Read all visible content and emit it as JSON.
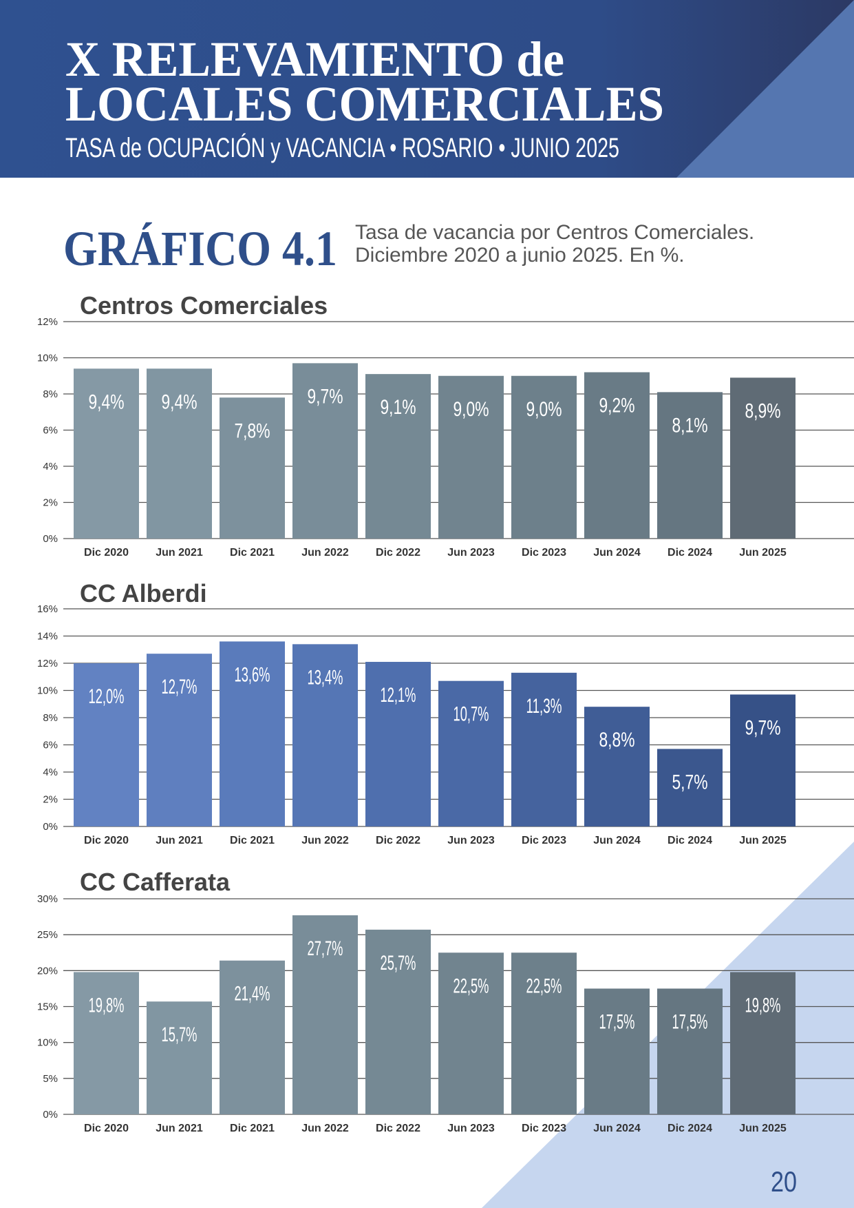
{
  "header": {
    "title_line1": "X RELEVAMIENTO de",
    "title_line2": "LOCALES COMERCIALES",
    "subtitle": "TASA de OCUPACIÓN y VACANCIA  •  ROSARIO  •  JUNIO 2025"
  },
  "figure": {
    "label": "GRÁFICO 4.1",
    "description_line1": "Tasa de vacancia por Centros Comerciales.",
    "description_line2": "Diciembre 2020 a junio 2025. En %."
  },
  "chart_data": [
    {
      "type": "bar",
      "title": "Centros Comerciales",
      "categories": [
        "Dic 2020",
        "Jun 2021",
        "Dic 2021",
        "Jun 2022",
        "Dic 2022",
        "Jun 2023",
        "Dic 2023",
        "Jun 2024",
        "Dic 2024",
        "Jun 2025"
      ],
      "values": [
        9.4,
        9.4,
        7.8,
        9.7,
        9.1,
        9.0,
        9.0,
        9.2,
        8.1,
        8.9
      ],
      "value_labels": [
        "9,4%",
        "9,4%",
        "7,8%",
        "9,7%",
        "9,1%",
        "9,0%",
        "9,0%",
        "9,2%",
        "8,1%",
        "8,9%"
      ],
      "colors": [
        "#8599a5",
        "#8196a2",
        "#7d919d",
        "#798d99",
        "#758994",
        "#71848f",
        "#6d808b",
        "#697b86",
        "#657681",
        "#5f6b75"
      ],
      "ylim": [
        0,
        12
      ],
      "yticks": [
        {
          "value": 0,
          "label": "0%"
        },
        {
          "value": 2,
          "label": "2%"
        },
        {
          "value": 4,
          "label": "4%"
        },
        {
          "value": 6,
          "label": "6%"
        },
        {
          "value": 8,
          "label": "8%"
        },
        {
          "value": 10,
          "label": "10%"
        },
        {
          "value": 12,
          "label": "12%"
        }
      ],
      "grid": true
    },
    {
      "type": "bar",
      "title": "CC Alberdi",
      "categories": [
        "Dic 2020",
        "Jun 2021",
        "Dic 2021",
        "Jun 2022",
        "Dic 2022",
        "Jun 2023",
        "Dic 2023",
        "Jun 2024",
        "Dic 2024",
        "Jun 2025"
      ],
      "values": [
        12.0,
        12.7,
        13.6,
        13.4,
        12.1,
        10.7,
        11.3,
        8.8,
        5.7,
        9.7
      ],
      "value_labels": [
        "12,0%",
        "12,7%",
        "13,6%",
        "13,4%",
        "12,1%",
        "10,7%",
        "11,3%",
        "8,8%",
        "5,7%",
        "9,7%"
      ],
      "colors": [
        "#6282c2",
        "#5f7fbf",
        "#5a7bbb",
        "#5576b5",
        "#4f6fae",
        "#4a69a6",
        "#45639e",
        "#405d96",
        "#3b578e",
        "#365187"
      ],
      "ylim": [
        0,
        16
      ],
      "yticks": [
        {
          "value": 0,
          "label": "0%"
        },
        {
          "value": 2,
          "label": "2%"
        },
        {
          "value": 4,
          "label": "4%"
        },
        {
          "value": 6,
          "label": "6%"
        },
        {
          "value": 8,
          "label": "8%"
        },
        {
          "value": 10,
          "label": "10%"
        },
        {
          "value": 12,
          "label": "12%"
        },
        {
          "value": 14,
          "label": "14%"
        },
        {
          "value": 16,
          "label": "16%"
        }
      ],
      "grid": true
    },
    {
      "type": "bar",
      "title": "CC Cafferata",
      "categories": [
        "Dic 2020",
        "Jun 2021",
        "Dic 2021",
        "Jun 2022",
        "Dic 2022",
        "Jun 2023",
        "Dic 2023",
        "Jun 2024",
        "Dic 2024",
        "Jun 2025"
      ],
      "values": [
        19.8,
        15.7,
        21.4,
        27.7,
        25.7,
        22.5,
        22.5,
        17.5,
        17.5,
        19.8
      ],
      "value_labels": [
        "19,8%",
        "15,7%",
        "21,4%",
        "27,7%",
        "25,7%",
        "22,5%",
        "22,5%",
        "17,5%",
        "17,5%",
        "19,8%"
      ],
      "colors": [
        "#8599a5",
        "#8196a2",
        "#7d919d",
        "#798d99",
        "#758994",
        "#71848f",
        "#6d808b",
        "#697b86",
        "#657681",
        "#5f6b75"
      ],
      "ylim": [
        0,
        30
      ],
      "yticks": [
        {
          "value": 0,
          "label": "0%"
        },
        {
          "value": 5,
          "label": "5%"
        },
        {
          "value": 10,
          "label": "10%"
        },
        {
          "value": 15,
          "label": "15%"
        },
        {
          "value": 20,
          "label": "20%"
        },
        {
          "value": 25,
          "label": "25%"
        },
        {
          "value": 30,
          "label": "30%"
        }
      ],
      "grid": true
    }
  ],
  "page_number": "20"
}
